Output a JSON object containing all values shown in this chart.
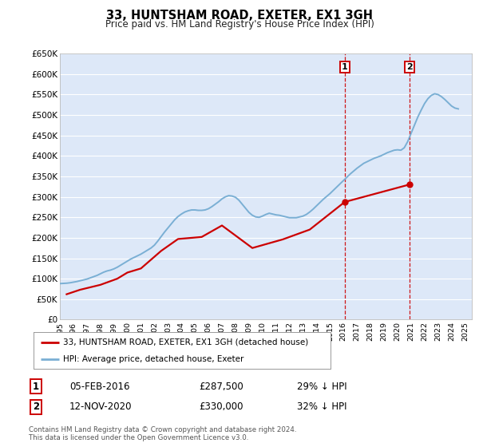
{
  "title": "33, HUNTSHAM ROAD, EXETER, EX1 3GH",
  "subtitle": "Price paid vs. HM Land Registry's House Price Index (HPI)",
  "ylim": [
    0,
    650000
  ],
  "yticks": [
    0,
    50000,
    100000,
    150000,
    200000,
    250000,
    300000,
    350000,
    400000,
    450000,
    500000,
    550000,
    600000,
    650000
  ],
  "ytick_labels": [
    "£0",
    "£50K",
    "£100K",
    "£150K",
    "£200K",
    "£250K",
    "£300K",
    "£350K",
    "£400K",
    "£450K",
    "£500K",
    "£550K",
    "£600K",
    "£650K"
  ],
  "xlim_start": 1995.0,
  "xlim_end": 2025.5,
  "background_color": "#ffffff",
  "plot_bg_color": "#dde8f8",
  "grid_color": "#ffffff",
  "hpi_line_color": "#7aafd4",
  "price_line_color": "#cc0000",
  "point1_x": 2016.09,
  "point1_y": 287500,
  "point2_x": 2020.87,
  "point2_y": 330000,
  "vline_color": "#cc0000",
  "legend_label1": "33, HUNTSHAM ROAD, EXETER, EX1 3GH (detached house)",
  "legend_label2": "HPI: Average price, detached house, Exeter",
  "table_row1": [
    "1",
    "05-FEB-2016",
    "£287,500",
    "29% ↓ HPI"
  ],
  "table_row2": [
    "2",
    "12-NOV-2020",
    "£330,000",
    "32% ↓ HPI"
  ],
  "footnote": "Contains HM Land Registry data © Crown copyright and database right 2024.\nThis data is licensed under the Open Government Licence v3.0.",
  "hpi_x": [
    1995.0,
    1995.25,
    1995.5,
    1995.75,
    1996.0,
    1996.25,
    1996.5,
    1996.75,
    1997.0,
    1997.25,
    1997.5,
    1997.75,
    1998.0,
    1998.25,
    1998.5,
    1998.75,
    1999.0,
    1999.25,
    1999.5,
    1999.75,
    2000.0,
    2000.25,
    2000.5,
    2000.75,
    2001.0,
    2001.25,
    2001.5,
    2001.75,
    2002.0,
    2002.25,
    2002.5,
    2002.75,
    2003.0,
    2003.25,
    2003.5,
    2003.75,
    2004.0,
    2004.25,
    2004.5,
    2004.75,
    2005.0,
    2005.25,
    2005.5,
    2005.75,
    2006.0,
    2006.25,
    2006.5,
    2006.75,
    2007.0,
    2007.25,
    2007.5,
    2007.75,
    2008.0,
    2008.25,
    2008.5,
    2008.75,
    2009.0,
    2009.25,
    2009.5,
    2009.75,
    2010.0,
    2010.25,
    2010.5,
    2010.75,
    2011.0,
    2011.25,
    2011.5,
    2011.75,
    2012.0,
    2012.25,
    2012.5,
    2012.75,
    2013.0,
    2013.25,
    2013.5,
    2013.75,
    2014.0,
    2014.25,
    2014.5,
    2014.75,
    2015.0,
    2015.25,
    2015.5,
    2015.75,
    2016.0,
    2016.25,
    2016.5,
    2016.75,
    2017.0,
    2017.25,
    2017.5,
    2017.75,
    2018.0,
    2018.25,
    2018.5,
    2018.75,
    2019.0,
    2019.25,
    2019.5,
    2019.75,
    2020.0,
    2020.25,
    2020.5,
    2020.75,
    2021.0,
    2021.25,
    2021.5,
    2021.75,
    2022.0,
    2022.25,
    2022.5,
    2022.75,
    2023.0,
    2023.25,
    2023.5,
    2023.75,
    2024.0,
    2024.25,
    2024.5
  ],
  "hpi_y": [
    88000,
    88500,
    89000,
    90000,
    91500,
    93000,
    95000,
    97000,
    99000,
    102000,
    105000,
    108000,
    112000,
    116000,
    119000,
    121000,
    124000,
    128000,
    133000,
    138000,
    143000,
    148000,
    152000,
    156000,
    160000,
    165000,
    170000,
    175000,
    182000,
    192000,
    203000,
    214000,
    224000,
    234000,
    244000,
    252000,
    258000,
    263000,
    266000,
    268000,
    268000,
    267000,
    267000,
    268000,
    271000,
    276000,
    282000,
    288000,
    295000,
    300000,
    303000,
    302000,
    299000,
    292000,
    282000,
    272000,
    262000,
    255000,
    251000,
    250000,
    253000,
    257000,
    260000,
    258000,
    256000,
    255000,
    253000,
    251000,
    249000,
    249000,
    249000,
    251000,
    253000,
    257000,
    263000,
    270000,
    278000,
    286000,
    294000,
    301000,
    308000,
    316000,
    324000,
    332000,
    340000,
    348000,
    356000,
    363000,
    370000,
    376000,
    382000,
    386000,
    390000,
    394000,
    397000,
    400000,
    404000,
    408000,
    411000,
    414000,
    415000,
    414000,
    420000,
    435000,
    455000,
    475000,
    495000,
    512000,
    528000,
    540000,
    548000,
    552000,
    550000,
    545000,
    538000,
    530000,
    522000,
    517000,
    515000
  ],
  "price_x": [
    1995.5,
    1996.5,
    1998.0,
    1999.25,
    2000.0,
    2001.0,
    2002.5,
    2003.75,
    2005.5,
    2007.0,
    2009.25,
    2011.5,
    2013.5,
    2016.09,
    2020.87
  ],
  "price_y": [
    62000,
    73000,
    85000,
    100000,
    115000,
    125000,
    168000,
    197000,
    202000,
    230000,
    175000,
    196000,
    220000,
    287500,
    330000
  ]
}
